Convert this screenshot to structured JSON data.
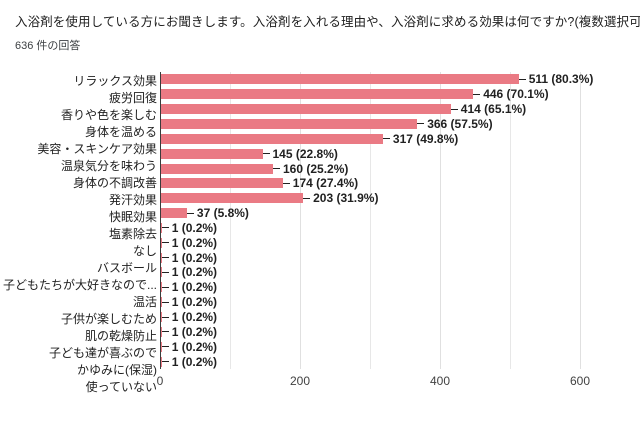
{
  "header": {
    "title": "入浴剤を使用している方にお聞きします。入浴剤を入れる理由や、入浴剤に求める効果は何ですか?(複数選択可)",
    "response_count": "636 件の回答"
  },
  "chart_data": {
    "type": "bar",
    "orientation": "horizontal",
    "title": "入浴剤を使用している方にお聞きします。入浴剤を入れる理由や、入浴剤に求める効果は何ですか?(複数選択可)",
    "subtitle": "636 件の回答",
    "total_responses": 636,
    "xlim": [
      0,
      600
    ],
    "x_ticks": [
      0,
      200,
      400,
      600
    ],
    "x_gridlines": [
      100,
      200,
      300,
      400,
      500,
      600
    ],
    "grid_on": true,
    "bar_color": "#ea7a84",
    "axis_color": "#3b3b3b",
    "categories": [
      "リラックス効果",
      "疲労回復",
      "香りや色を楽しむ",
      "身体を温める",
      "美容・スキンケア効果",
      "温泉気分を味わう",
      "身体の不調改善",
      "発汗効果",
      "快眠効果",
      "塩素除去",
      "なし",
      "バスボール",
      "子どもたちが大好きなので...",
      "",
      "温活",
      "子供が楽しむため",
      "肌の乾燥防止",
      "子ども達が喜ぶので",
      "かゆみに(保湿)",
      "使っていない"
    ],
    "values": [
      511,
      446,
      414,
      366,
      317,
      145,
      160,
      174,
      203,
      37,
      1,
      1,
      1,
      1,
      1,
      1,
      1,
      1,
      1,
      1
    ],
    "annotations": [
      "511 (80.3%)",
      "446 (70.1%)",
      "414 (65.1%)",
      "366 (57.5%)",
      "317 (49.8%)",
      "145 (22.8%)",
      "160 (25.2%)",
      "174 (27.4%)",
      "203 (31.9%)",
      "37 (5.8%)",
      "1 (0.2%)",
      "1 (0.2%)",
      "1 (0.2%)",
      "1 (0.2%)",
      "1 (0.2%)",
      "1 (0.2%)",
      "1 (0.2%)",
      "1 (0.2%)",
      "1 (0.2%)",
      "1 (0.2%)"
    ]
  }
}
